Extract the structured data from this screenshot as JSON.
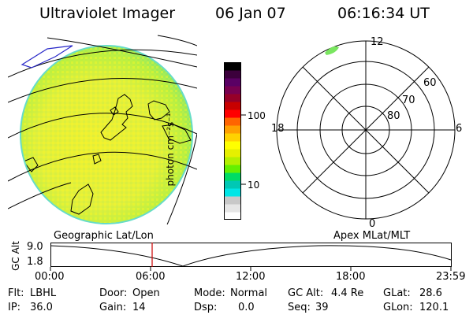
{
  "header": {
    "instrument": "Ultraviolet Imager",
    "date": "06 Jan 07",
    "time": "06:16:34 UT"
  },
  "colorbar": {
    "unit_label": "photon cm⁻²s⁻¹",
    "tick_100": "100",
    "tick_10": "10",
    "colors": [
      "#ffffff",
      "#e6e6e6",
      "#c8c8c8",
      "#00e6e6",
      "#00c8b4",
      "#00dc64",
      "#64f000",
      "#b4f000",
      "#e6f000",
      "#ffff00",
      "#ffd200",
      "#ffa000",
      "#ff6400",
      "#ff0000",
      "#c80000",
      "#960028",
      "#780050",
      "#5a0064",
      "#3c003c",
      "#000000"
    ]
  },
  "polar": {
    "mlt_12": "12",
    "mlt_18": "18",
    "mlt_6": "6",
    "mlt_0": "0",
    "lat_60": "60",
    "lat_70": "70",
    "lat_80": "80"
  },
  "timeline": {
    "left_label": "Geographic Lat/Lon",
    "right_label": "Apex  MLat/MLT",
    "y_axis_label": "GC Alt",
    "y_top": "9.0",
    "y_bottom": "1.8",
    "ticks": [
      "00:00",
      "06:00",
      "12:00",
      "18:00",
      "23:59"
    ],
    "marker_color": "#cc0000"
  },
  "info": {
    "flt_label": "Flt:",
    "flt_value": "LBHL",
    "door_label": "Door:",
    "door_value": "Open",
    "mode_label": "Mode:",
    "mode_value": "Normal",
    "gcalt_label": "GC Alt:",
    "gcalt_value": "4.4 Re",
    "glat_label": "GLat:",
    "glat_value": "28.6",
    "ip_label": "IP:",
    "ip_value": "36.0",
    "gain_label": "Gain:",
    "gain_value": "14",
    "dsp_label": "Dsp:",
    "dsp_value": "0.0",
    "seq_label": "Seq:",
    "seq_value": "39",
    "glon_label": "GLon:",
    "glon_value": "120.1"
  }
}
